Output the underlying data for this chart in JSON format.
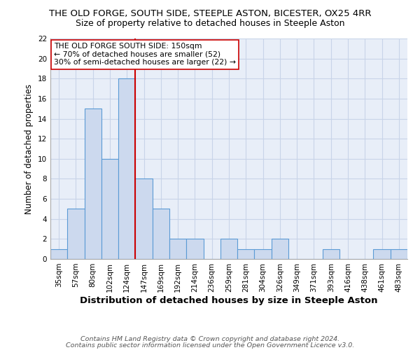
{
  "title": "THE OLD FORGE, SOUTH SIDE, STEEPLE ASTON, BICESTER, OX25 4RR",
  "subtitle": "Size of property relative to detached houses in Steeple Aston",
  "xlabel": "Distribution of detached houses by size in Steeple Aston",
  "ylabel": "Number of detached properties",
  "categories": [
    "35sqm",
    "57sqm",
    "80sqm",
    "102sqm",
    "124sqm",
    "147sqm",
    "169sqm",
    "192sqm",
    "214sqm",
    "236sqm",
    "259sqm",
    "281sqm",
    "304sqm",
    "326sqm",
    "349sqm",
    "371sqm",
    "393sqm",
    "416sqm",
    "438sqm",
    "461sqm",
    "483sqm"
  ],
  "values": [
    1,
    5,
    15,
    10,
    18,
    8,
    5,
    2,
    2,
    0,
    2,
    1,
    1,
    2,
    0,
    0,
    1,
    0,
    0,
    1,
    1
  ],
  "bar_color": "#ccd9ee",
  "bar_edge_color": "#5b9bd5",
  "vline_color": "#cc0000",
  "annotation_text": "THE OLD FORGE SOUTH SIDE: 150sqm\n← 70% of detached houses are smaller (52)\n30% of semi-detached houses are larger (22) →",
  "annotation_box_color": "#ffffff",
  "annotation_box_edge": "#cc0000",
  "ylim": [
    0,
    22
  ],
  "yticks": [
    0,
    2,
    4,
    6,
    8,
    10,
    12,
    14,
    16,
    18,
    20,
    22
  ],
  "bg_color": "#ffffff",
  "plot_bg_color": "#e8eef8",
  "grid_color": "#c8d4e8",
  "footer1": "Contains HM Land Registry data © Crown copyright and database right 2024.",
  "footer2": "Contains public sector information licensed under the Open Government Licence v3.0.",
  "title_fontsize": 9.5,
  "subtitle_fontsize": 9.0,
  "xlabel_fontsize": 9.5,
  "ylabel_fontsize": 8.5,
  "tick_fontsize": 7.5,
  "annotation_fontsize": 7.8,
  "footer_fontsize": 6.8
}
